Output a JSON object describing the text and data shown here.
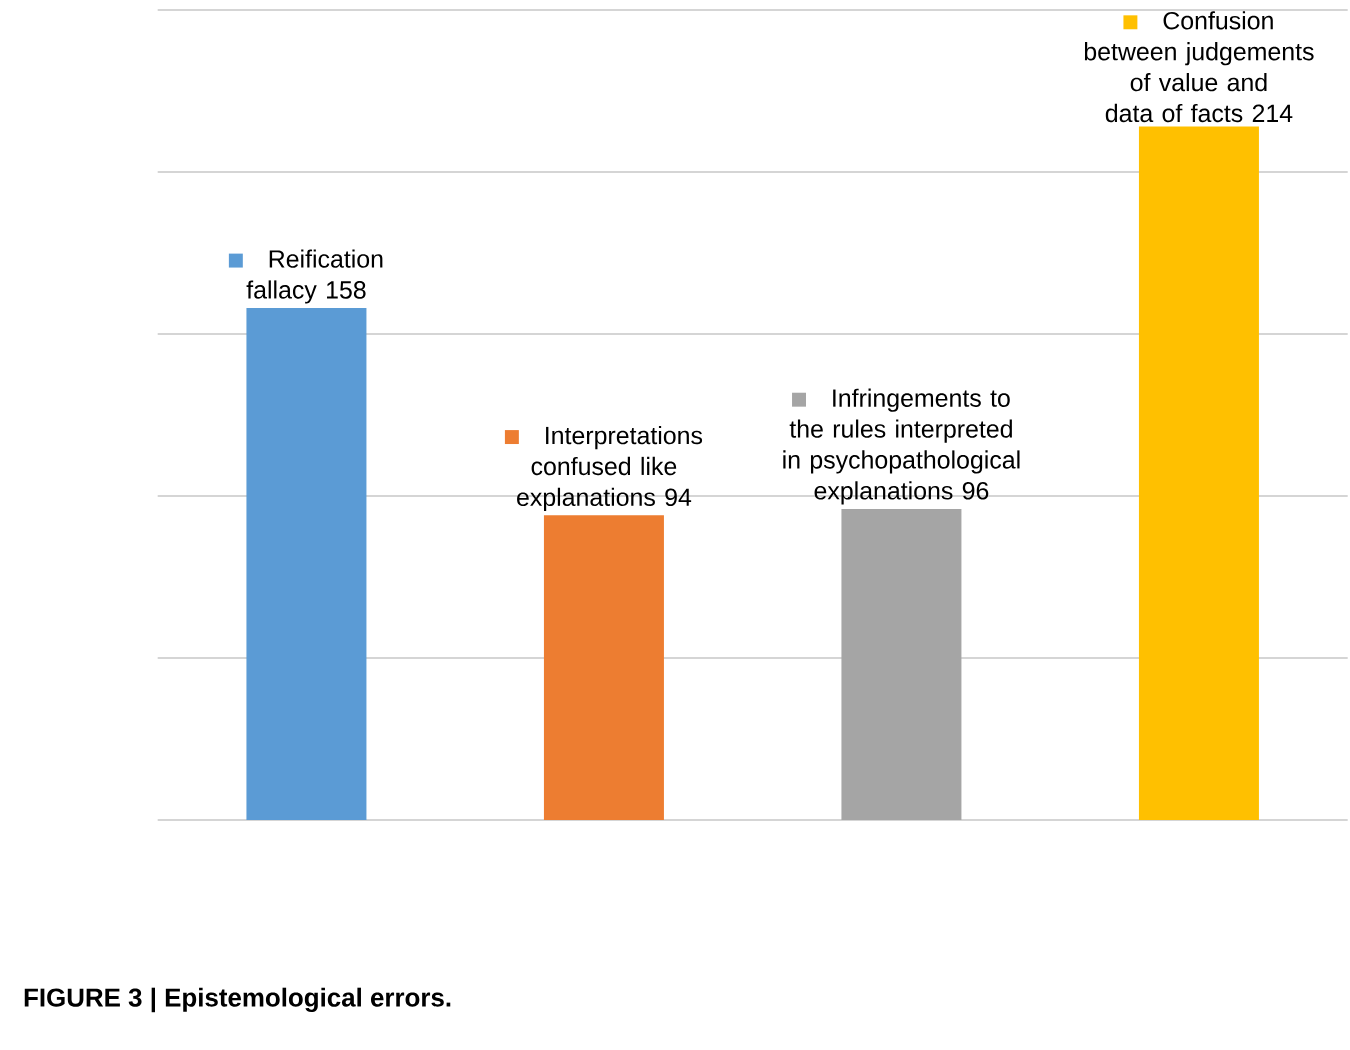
{
  "chart_data": {
    "type": "bar",
    "categories": [
      "Reification fallacy",
      "Interpretations confused like explanations",
      "Infringements to the rules interpreted in psychopathological explanations",
      "Confusion between judgements of value and data of facts"
    ],
    "values": [
      158,
      94,
      96,
      214
    ],
    "colors": [
      "#5b9bd5",
      "#ed7d31",
      "#a5a5a5",
      "#ffc000"
    ],
    "ylim": [
      0,
      250
    ],
    "yticks": [
      {
        "value": 0,
        "label": null
      },
      {
        "value": 50,
        "label": null
      },
      {
        "value": 100,
        "label": null
      },
      {
        "value": 150,
        "label": null
      },
      {
        "value": 200,
        "label": null
      },
      {
        "value": 250,
        "label": null
      }
    ],
    "grid": "y",
    "tick_labels": false,
    "data_labels": true,
    "annotations": [
      "FIGURE 3 | Epistemological errors."
    ]
  }
}
